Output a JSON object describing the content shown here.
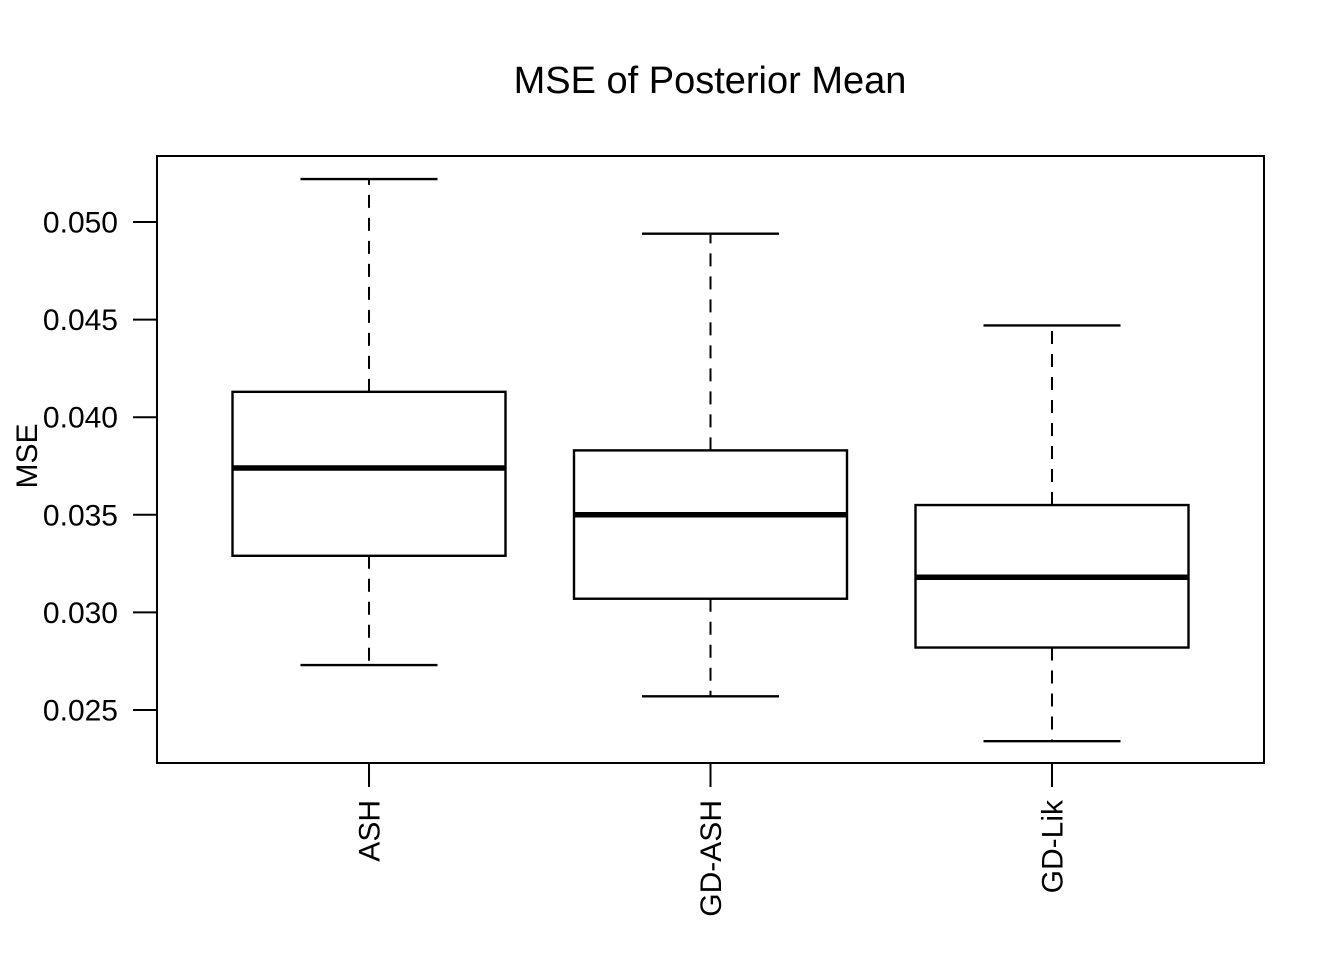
{
  "title": "MSE of Posterior Mean",
  "colors": {
    "foreground": "#000000",
    "background": "#ffffff"
  },
  "chart_data": {
    "type": "boxplot",
    "title": "MSE of Posterior Mean",
    "xlabel": "",
    "ylabel": "MSE",
    "categories": [
      "ASH",
      "GD-ASH",
      "GD-Lik"
    ],
    "y_ticks": [
      "0.025",
      "0.030",
      "0.035",
      "0.040",
      "0.045",
      "0.050"
    ],
    "ylim": [
      0.0223,
      0.0534
    ],
    "grid": false,
    "legend": "none",
    "boxes": [
      {
        "label": "ASH",
        "whisker_low": 0.0273,
        "q1": 0.0329,
        "median": 0.0374,
        "q3": 0.0413,
        "whisker_high": 0.0522
      },
      {
        "label": "GD-ASH",
        "whisker_low": 0.0257,
        "q1": 0.0307,
        "median": 0.035,
        "q3": 0.0383,
        "whisker_high": 0.0494
      },
      {
        "label": "GD-Lik",
        "whisker_low": 0.0234,
        "q1": 0.0282,
        "median": 0.0318,
        "q3": 0.0355,
        "whisker_high": 0.0447
      }
    ]
  }
}
